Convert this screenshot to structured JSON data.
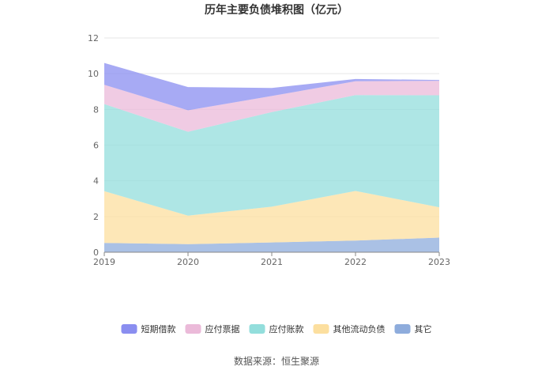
{
  "chart_data": {
    "type": "area",
    "stacked": true,
    "title": "历年主要负债堆积图（亿元）",
    "source": "数据来源：恒生聚源",
    "x": [
      "2019",
      "2020",
      "2021",
      "2022",
      "2023"
    ],
    "ylim": [
      0,
      12
    ],
    "yticks": [
      "0",
      "2",
      "4",
      "6",
      "8",
      "10",
      "12"
    ],
    "grid": true,
    "legend_position": "bottom",
    "series": [
      {
        "name": "其它",
        "color": "#8eacdc",
        "values": [
          0.52,
          0.45,
          0.55,
          0.65,
          0.82
        ]
      },
      {
        "name": "其他流动负债",
        "color": "#fcdf9f",
        "values": [
          2.9,
          1.6,
          2.0,
          2.78,
          1.7
        ]
      },
      {
        "name": "应付账款",
        "color": "#93dedc",
        "values": [
          4.88,
          4.7,
          5.3,
          5.37,
          6.27
        ]
      },
      {
        "name": "应付票据",
        "color": "#ebbad9",
        "values": [
          1.08,
          1.2,
          0.9,
          0.78,
          0.81
        ]
      },
      {
        "name": "短期借款",
        "color": "#8a8ef0",
        "values": [
          1.22,
          1.3,
          0.45,
          0.12,
          0.05
        ]
      }
    ],
    "legend_order": [
      "短期借款",
      "应付票据",
      "应付账款",
      "其他流动负债",
      "其它"
    ]
  }
}
